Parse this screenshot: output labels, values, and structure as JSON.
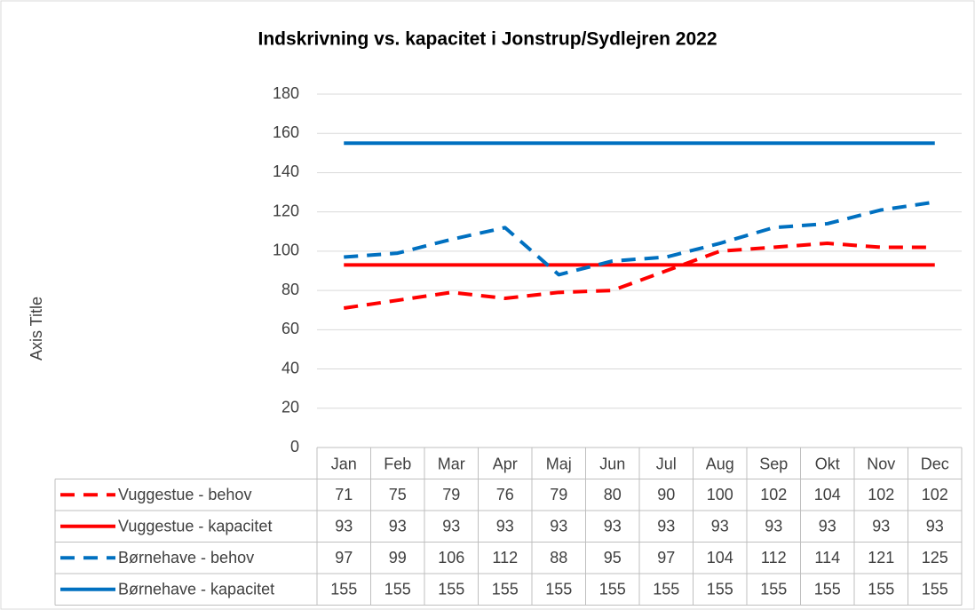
{
  "chart_data": {
    "type": "line",
    "title": "Indskrivning vs. kapacitet i Jonstrup/Sydlejren 2022",
    "y_label": "Axis Title",
    "categories": [
      "Jan",
      "Feb",
      "Mar",
      "Apr",
      "Maj",
      "Jun",
      "Jul",
      "Aug",
      "Sep",
      "Okt",
      "Nov",
      "Dec"
    ],
    "series": [
      {
        "name": "Vuggestue - behov",
        "color": "#ff0000",
        "dashed": true,
        "values": [
          71,
          75,
          79,
          76,
          79,
          80,
          90,
          100,
          102,
          104,
          102,
          102
        ]
      },
      {
        "name": "Vuggestue - kapacitet",
        "color": "#ff0000",
        "dashed": false,
        "values": [
          93,
          93,
          93,
          93,
          93,
          93,
          93,
          93,
          93,
          93,
          93,
          93
        ]
      },
      {
        "name": "Børnehave - behov",
        "color": "#0070c0",
        "dashed": true,
        "values": [
          97,
          99,
          106,
          112,
          88,
          95,
          97,
          104,
          112,
          114,
          121,
          125
        ]
      },
      {
        "name": "Børnehave - kapacitet",
        "color": "#0070c0",
        "dashed": false,
        "values": [
          155,
          155,
          155,
          155,
          155,
          155,
          155,
          155,
          155,
          155,
          155,
          155
        ]
      }
    ],
    "ylim": [
      0,
      180
    ],
    "yticks": [
      0,
      20,
      40,
      60,
      80,
      100,
      120,
      140,
      160,
      180
    ],
    "grid": true,
    "data_table": true
  }
}
